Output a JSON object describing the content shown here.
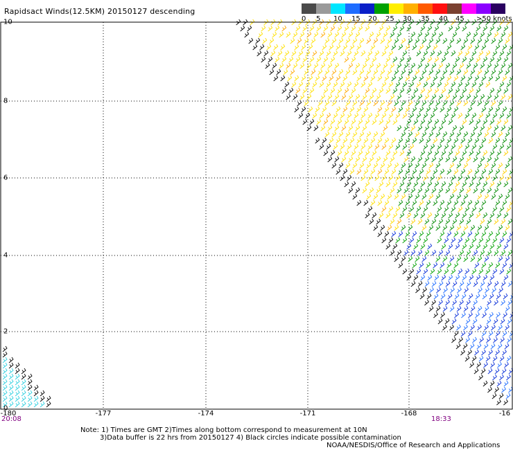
{
  "title": "Rapidsact Winds(12.5KM) 20150127 descending",
  "legend": {
    "labels": [
      "0",
      "5",
      "10",
      "15",
      "20",
      "25",
      "30",
      "35",
      "40",
      "45",
      ">50 knots"
    ],
    "colors": [
      "#4a4a4a",
      "#9a9a9a",
      "#00e6ff",
      "#1e6cff",
      "#0a1fc8",
      "#00a000",
      "#ffee00",
      "#ffb000",
      "#ff5a00",
      "#ff1010",
      "#7a4030",
      "#ff00ff",
      "#8a00ff",
      "#2a0060"
    ]
  },
  "axes": {
    "x_ticks": [
      "-180",
      "-177",
      "-174",
      "-171",
      "-168",
      "-16"
    ],
    "y_ticks": [
      "0",
      "2",
      "4",
      "6",
      "8",
      "10"
    ]
  },
  "times": {
    "start": "20:08",
    "end": "18:33"
  },
  "notes": [
    "Note: 1) Times are GMT 2)Times along bottom correspond to measurement at 10N",
    "3)Data buffer is 22 hrs from 20150127 4) Black circles indicate possible contamination"
  ],
  "credit": "NOAA/NESDIS/Office of Research and Applications"
}
